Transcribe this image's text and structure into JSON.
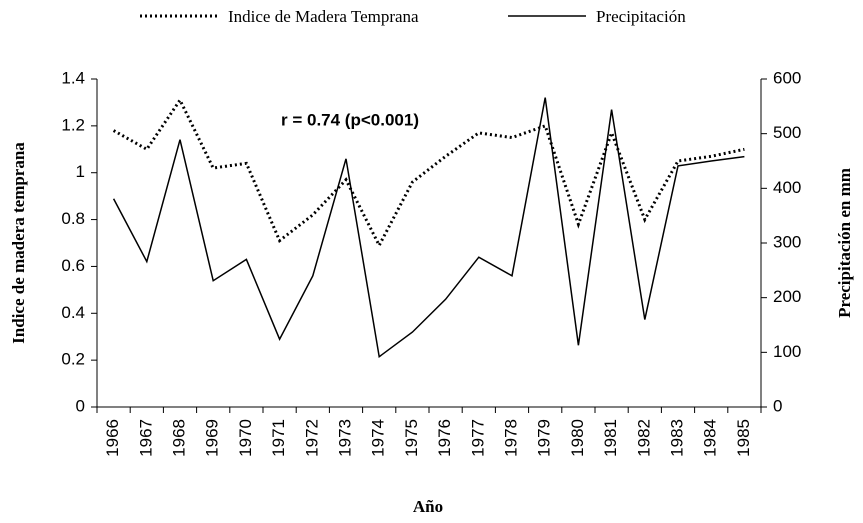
{
  "chart_data": {
    "type": "line",
    "annotation": "r = 0.74 (p<0.001)",
    "x_label": "Año",
    "y_label": "Indice de madera temprana",
    "y2_label": "Precipitación en mm",
    "legend": "top",
    "categories": [
      "1966",
      "1967",
      "1968",
      "1969",
      "1970",
      "1971",
      "1972",
      "1973",
      "1974",
      "1975",
      "1976",
      "1977",
      "1978",
      "1979",
      "1980",
      "1981",
      "1982",
      "1983",
      "1984",
      "1985"
    ],
    "series": [
      {
        "name": "Indice de Madera Temprana",
        "color": "#000000",
        "dash": "dotted",
        "values": [
          1.18,
          1.1,
          1.31,
          1.02,
          1.04,
          0.71,
          0.82,
          0.97,
          0.69,
          0.96,
          1.07,
          1.17,
          1.15,
          1.2,
          0.78,
          1.17,
          0.8,
          1.05,
          1.07,
          1.1
        ]
      },
      {
        "name": "Precipitación",
        "color": "#000000",
        "dash": "solid",
        "axis": "y2",
        "values": [
          381,
          266,
          489,
          231,
          270,
          124,
          240,
          454,
          92,
          137,
          197,
          274,
          240,
          566,
          113,
          544,
          160,
          441,
          450,
          458
        ]
      }
    ],
    "ylim": [
      0,
      1.4
    ],
    "yticks": [
      0,
      0.2,
      0.4,
      0.6,
      0.8,
      1,
      1.2,
      1.4
    ],
    "y2lim": [
      0,
      600
    ],
    "y2ticks": [
      0,
      100,
      200,
      300,
      400,
      500,
      600
    ]
  }
}
